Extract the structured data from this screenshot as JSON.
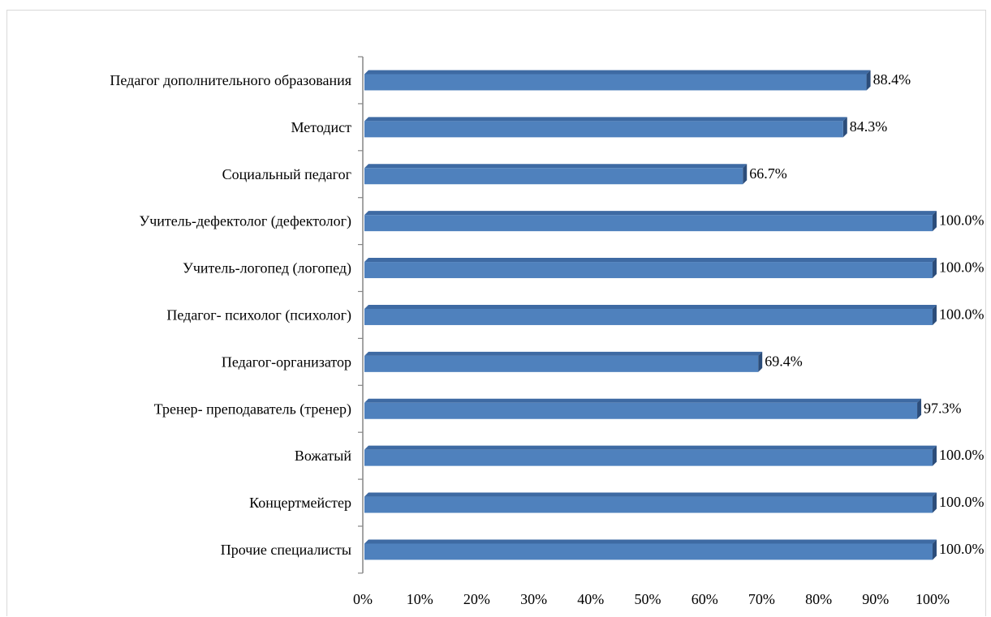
{
  "chart_data": {
    "type": "bar",
    "orientation": "horizontal",
    "categories": [
      "Педагог дополнительного образования",
      "Методист",
      "Социальный педагог",
      "Учитель-дефектолог (дефектолог)",
      "Учитель-логопед (логопед)",
      "Педагог- психолог (психолог)",
      "Педагог-организатор",
      "Тренер- преподаватель (тренер)",
      "Вожатый",
      "Концертмейстер",
      "Прочие специалисты"
    ],
    "values": [
      88.4,
      84.3,
      66.7,
      100.0,
      100.0,
      100.0,
      69.4,
      97.3,
      100.0,
      100.0,
      100.0
    ],
    "value_labels": [
      "88.4%",
      "84.3%",
      "66.7%",
      "100.0%",
      "100.0%",
      "100.0%",
      "69.4%",
      "97.3%",
      "100.0%",
      "100.0%",
      "100.0%"
    ],
    "xticks": [
      "0%",
      "10%",
      "20%",
      "30%",
      "40%",
      "50%",
      "60%",
      "70%",
      "80%",
      "90%",
      "100%"
    ],
    "xlim": [
      0,
      100
    ],
    "title": "",
    "xlabel": "",
    "ylabel": "",
    "grid": false,
    "legend": "none",
    "bar_color": "#4f81bd",
    "bar_top_color": "#3e6aa3",
    "bar_side_color": "#2c4d7a"
  }
}
